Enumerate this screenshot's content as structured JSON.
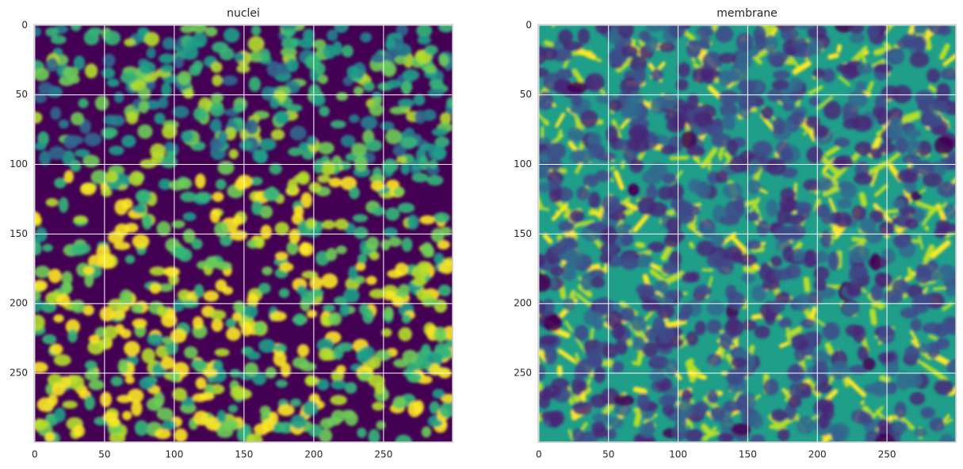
{
  "chart_data": [
    {
      "type": "image",
      "title": "nuclei",
      "cmap": "viridis",
      "grid": true,
      "xlim": [
        -0.5,
        299.5
      ],
      "ylim": [
        299.5,
        -0.5
      ],
      "xticks": [
        0,
        50,
        100,
        150,
        200,
        250
      ],
      "yticks": [
        0,
        50,
        100,
        150,
        200,
        250
      ]
    },
    {
      "type": "image",
      "title": "membrane",
      "cmap": "viridis",
      "grid": true,
      "xlim": [
        -0.5,
        299.5
      ],
      "ylim": [
        299.5,
        -0.5
      ],
      "xticks": [
        0,
        50,
        100,
        150,
        200,
        250
      ],
      "yticks": [
        0,
        50,
        100,
        150,
        200,
        250
      ]
    }
  ]
}
